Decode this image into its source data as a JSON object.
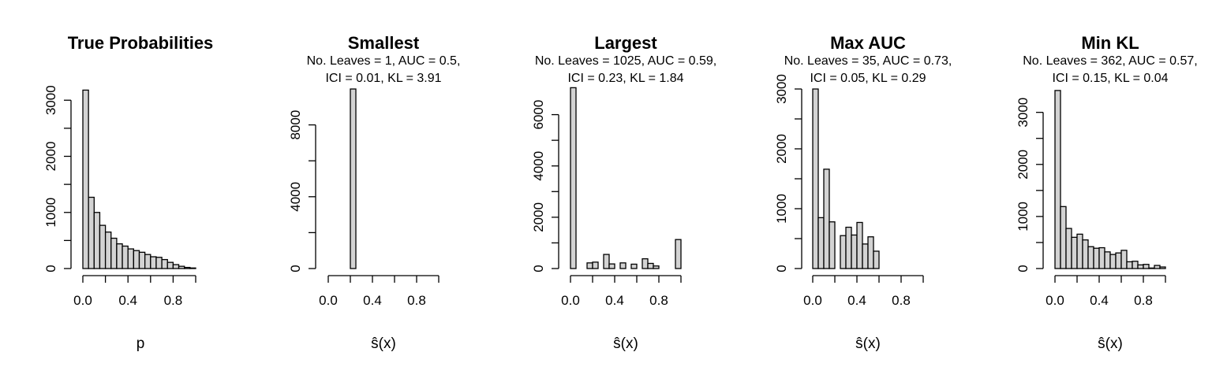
{
  "chart_data": [
    {
      "type": "bar",
      "title": "True Probabilities",
      "subtitle": [],
      "xlabel": "p",
      "ylabel": "",
      "xlim": [
        0,
        1
      ],
      "ylim": [
        0,
        3200
      ],
      "xticks": [
        0.0,
        0.4,
        0.8
      ],
      "xtick_labels": [
        "0.0",
        "0.4",
        "0.8"
      ],
      "yticks": [
        0,
        1000,
        2000,
        3000
      ],
      "ytick_labels": [
        "0",
        "1000",
        "2000",
        "3000"
      ],
      "bin_width": 0.05,
      "bins_start": [
        0.0,
        0.05,
        0.1,
        0.15,
        0.2,
        0.25,
        0.3,
        0.35,
        0.4,
        0.45,
        0.5,
        0.55,
        0.6,
        0.65,
        0.7,
        0.75,
        0.8,
        0.85,
        0.9,
        0.95
      ],
      "values": [
        3180,
        1270,
        1000,
        770,
        650,
        540,
        440,
        400,
        350,
        320,
        290,
        250,
        210,
        200,
        160,
        110,
        70,
        40,
        20,
        10
      ]
    },
    {
      "type": "bar",
      "title": "Smallest",
      "subtitle": [
        "No. Leaves = 1, AUC = 0.5,",
        "ICI = 0.01, KL = 3.91"
      ],
      "xlabel": "ŝ(x)",
      "ylabel": "",
      "xlim": [
        0,
        1
      ],
      "ylim": [
        0,
        10000
      ],
      "xticks": [
        0.0,
        0.4,
        0.8
      ],
      "xtick_labels": [
        "0.0",
        "0.4",
        "0.8"
      ],
      "yticks": [
        0,
        4000,
        8000
      ],
      "ytick_labels": [
        "0",
        "4000",
        "8000"
      ],
      "bin_width": 0.05,
      "bins_start": [
        0.0,
        0.05,
        0.1,
        0.15,
        0.2,
        0.25,
        0.3,
        0.35,
        0.4,
        0.45,
        0.5,
        0.55,
        0.6,
        0.65,
        0.7,
        0.75,
        0.8,
        0.85,
        0.9,
        0.95
      ],
      "values": [
        0,
        0,
        0,
        0,
        10000,
        0,
        0,
        0,
        0,
        0,
        0,
        0,
        0,
        0,
        0,
        0,
        0,
        0,
        0,
        0
      ]
    },
    {
      "type": "bar",
      "title": "Largest",
      "subtitle": [
        "No. Leaves = 1025, AUC = 0.59,",
        "ICI = 0.23, KL = 1.84"
      ],
      "xlabel": "ŝ(x)",
      "ylabel": "",
      "xlim": [
        0,
        1
      ],
      "ylim": [
        0,
        7000
      ],
      "xticks": [
        0.0,
        0.4,
        0.8
      ],
      "xtick_labels": [
        "0.0",
        "0.4",
        "0.8"
      ],
      "yticks": [
        0,
        2000,
        4000,
        6000
      ],
      "ytick_labels": [
        "0",
        "2000",
        "4000",
        "6000"
      ],
      "bin_width": 0.05,
      "bins_start": [
        0.0,
        0.05,
        0.1,
        0.15,
        0.2,
        0.25,
        0.3,
        0.35,
        0.4,
        0.45,
        0.5,
        0.55,
        0.6,
        0.65,
        0.7,
        0.75,
        0.8,
        0.85,
        0.9,
        0.95
      ],
      "values": [
        7050,
        0,
        0,
        220,
        250,
        0,
        550,
        180,
        0,
        220,
        0,
        170,
        0,
        380,
        200,
        100,
        0,
        0,
        0,
        1130
      ]
    },
    {
      "type": "bar",
      "title": "Max AUC",
      "subtitle": [
        "No. Leaves = 35, AUC = 0.73,",
        "ICI = 0.05, KL = 0.29"
      ],
      "xlabel": "ŝ(x)",
      "ylabel": "",
      "xlim": [
        0,
        1
      ],
      "ylim": [
        0,
        3000
      ],
      "xticks": [
        0.0,
        0.4,
        0.8
      ],
      "xtick_labels": [
        "0.0",
        "0.4",
        "0.8"
      ],
      "yticks": [
        0,
        1000,
        2000,
        3000
      ],
      "ytick_labels": [
        "0",
        "1000",
        "2000",
        "3000"
      ],
      "bin_width": 0.05,
      "bins_start": [
        0.0,
        0.05,
        0.1,
        0.15,
        0.2,
        0.25,
        0.3,
        0.35,
        0.4,
        0.45,
        0.5,
        0.55,
        0.6,
        0.65,
        0.7,
        0.75,
        0.8,
        0.85,
        0.9,
        0.95
      ],
      "values": [
        3000,
        850,
        1660,
        780,
        0,
        550,
        690,
        560,
        770,
        410,
        530,
        290,
        0,
        0,
        0,
        0,
        0,
        0,
        0,
        0
      ]
    },
    {
      "type": "bar",
      "title": "Min KL",
      "subtitle": [
        "No. Leaves = 362, AUC = 0.57,",
        "ICI = 0.15, KL = 0.04"
      ],
      "xlabel": "ŝ(x)",
      "ylabel": "",
      "xlim": [
        0,
        1
      ],
      "ylim": [
        0,
        3600
      ],
      "xticks": [
        0.0,
        0.4,
        0.8
      ],
      "xtick_labels": [
        "0.0",
        "0.4",
        "0.8"
      ],
      "yticks": [
        0,
        1000,
        2000,
        3000
      ],
      "ytick_labels": [
        "0",
        "1000",
        "2000",
        "3000"
      ],
      "bin_width": 0.05,
      "bins_start": [
        0.0,
        0.05,
        0.1,
        0.15,
        0.2,
        0.25,
        0.3,
        0.35,
        0.4,
        0.45,
        0.5,
        0.55,
        0.6,
        0.65,
        0.7,
        0.75,
        0.8,
        0.85,
        0.9,
        0.95
      ],
      "values": [
        3420,
        1190,
        770,
        600,
        660,
        550,
        420,
        390,
        400,
        320,
        270,
        300,
        350,
        130,
        140,
        70,
        80,
        10,
        60,
        30
      ]
    }
  ]
}
